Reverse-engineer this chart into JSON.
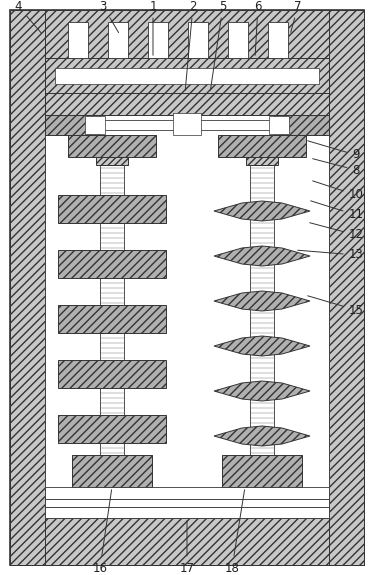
{
  "fig_width": 3.74,
  "fig_height": 5.75,
  "dpi": 100,
  "bg_color": "#ffffff",
  "fc_hatch": "#c8c8c8",
  "fc_hatch2": "#b0b0b0",
  "ec": "#333333",
  "lw": 0.7
}
